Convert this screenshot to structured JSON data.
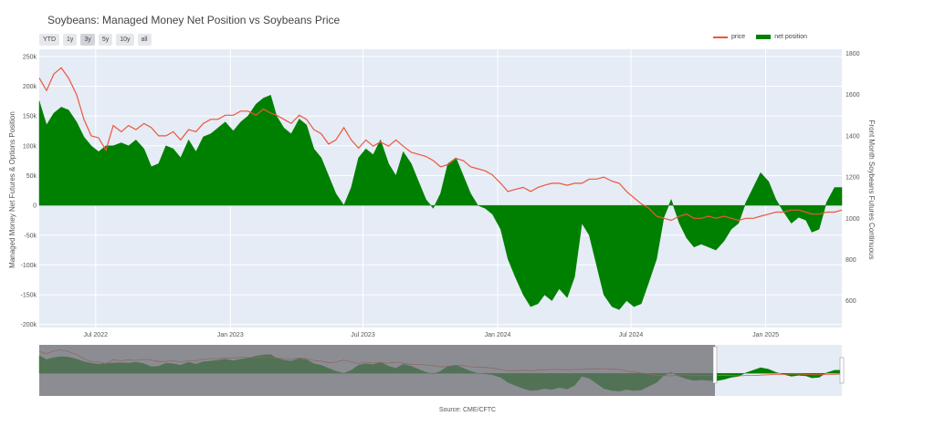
{
  "title": "Soybeans: Managed Money Net Position vs Soybeans Price",
  "range_buttons": [
    {
      "label": "YTD",
      "active": false
    },
    {
      "label": "1y",
      "active": false
    },
    {
      "label": "3y",
      "active": true
    },
    {
      "label": "5y",
      "active": false
    },
    {
      "label": "10y",
      "active": false
    },
    {
      "label": "all",
      "active": false
    }
  ],
  "legend": {
    "price_label": "price",
    "net_label": "net position",
    "price_color": "#ef553b",
    "net_color": "#008000"
  },
  "source": "Source: CME/CFTC",
  "chart_data": {
    "type": "area",
    "y_left_label": "Managed Money Net Futures & Options Position",
    "y_right_label": "Front Month Soybeans Futures Continuous",
    "y_left_ticks": [
      "250k",
      "200k",
      "150k",
      "100k",
      "50k",
      "0",
      "-50k",
      "-100k",
      "-150k",
      "-200k"
    ],
    "y_left_tick_values": [
      250000,
      200000,
      150000,
      100000,
      50000,
      0,
      -50000,
      -100000,
      -150000,
      -200000
    ],
    "y_right_ticks": [
      "1800",
      "1600",
      "1400",
      "1200",
      "1000",
      "800",
      "600"
    ],
    "y_right_tick_values": [
      1800,
      1600,
      1400,
      1200,
      1000,
      800,
      600
    ],
    "y_left_range": [
      -205000,
      262000
    ],
    "y_right_range": [
      470,
      1820
    ],
    "x_ticks": [
      "Jul 2022",
      "Jan 2023",
      "Jul 2023",
      "Jan 2024",
      "Jul 2024",
      "Jan 2025"
    ],
    "x_tick_dates": [
      "2022-07-01",
      "2023-01-01",
      "2023-07-01",
      "2024-01-01",
      "2024-07-01",
      "2025-01-01"
    ],
    "x_range": [
      "2022-04-15",
      "2025-04-15"
    ],
    "series": [
      {
        "name": "net position",
        "x": [
          "2022-04-15",
          "2022-04-25",
          "2022-05-05",
          "2022-05-15",
          "2022-05-25",
          "2022-06-05",
          "2022-06-15",
          "2022-06-25",
          "2022-07-05",
          "2022-07-15",
          "2022-07-25",
          "2022-08-05",
          "2022-08-15",
          "2022-08-25",
          "2022-09-05",
          "2022-09-15",
          "2022-09-25",
          "2022-10-05",
          "2022-10-15",
          "2022-10-25",
          "2022-11-05",
          "2022-11-15",
          "2022-11-25",
          "2022-12-05",
          "2022-12-15",
          "2022-12-25",
          "2023-01-05",
          "2023-01-15",
          "2023-01-25",
          "2023-02-05",
          "2023-02-15",
          "2023-02-25",
          "2023-03-05",
          "2023-03-15",
          "2023-03-25",
          "2023-04-05",
          "2023-04-15",
          "2023-04-25",
          "2023-05-05",
          "2023-05-15",
          "2023-05-25",
          "2023-06-05",
          "2023-06-15",
          "2023-06-25",
          "2023-07-05",
          "2023-07-15",
          "2023-07-25",
          "2023-08-05",
          "2023-08-15",
          "2023-08-25",
          "2023-09-05",
          "2023-09-15",
          "2023-09-25",
          "2023-10-05",
          "2023-10-15",
          "2023-10-25",
          "2023-11-05",
          "2023-11-15",
          "2023-11-25",
          "2023-12-05",
          "2023-12-15",
          "2023-12-25",
          "2024-01-05",
          "2024-01-15",
          "2024-01-25",
          "2024-02-05",
          "2024-02-15",
          "2024-02-25",
          "2024-03-05",
          "2024-03-15",
          "2024-03-25",
          "2024-04-05",
          "2024-04-15",
          "2024-04-25",
          "2024-05-05",
          "2024-05-15",
          "2024-05-25",
          "2024-06-05",
          "2024-06-15",
          "2024-06-25",
          "2024-07-05",
          "2024-07-15",
          "2024-07-25",
          "2024-08-05",
          "2024-08-15",
          "2024-08-25",
          "2024-09-05",
          "2024-09-15",
          "2024-09-25",
          "2024-10-05",
          "2024-10-15",
          "2024-10-25",
          "2024-11-05",
          "2024-11-15",
          "2024-11-25",
          "2024-12-05",
          "2024-12-15",
          "2024-12-25",
          "2025-01-05",
          "2025-01-15",
          "2025-01-25",
          "2025-02-05",
          "2025-02-15",
          "2025-02-25",
          "2025-03-05",
          "2025-03-15",
          "2025-03-25",
          "2025-04-05",
          "2025-04-15"
        ],
        "values": [
          175000,
          135000,
          155000,
          165000,
          160000,
          140000,
          115000,
          100000,
          90000,
          100000,
          100000,
          105000,
          100000,
          110000,
          95000,
          65000,
          70000,
          100000,
          95000,
          80000,
          110000,
          90000,
          115000,
          120000,
          130000,
          140000,
          125000,
          140000,
          150000,
          170000,
          180000,
          185000,
          150000,
          130000,
          120000,
          145000,
          135000,
          95000,
          80000,
          50000,
          20000,
          0,
          30000,
          80000,
          95000,
          85000,
          110000,
          70000,
          50000,
          90000,
          70000,
          40000,
          10000,
          -5000,
          20000,
          70000,
          80000,
          50000,
          20000,
          0,
          -5000,
          -15000,
          -40000,
          -90000,
          -120000,
          -150000,
          -170000,
          -165000,
          -150000,
          -160000,
          -140000,
          -155000,
          -120000,
          -30000,
          -50000,
          -100000,
          -150000,
          -170000,
          -175000,
          -160000,
          -170000,
          -165000,
          -130000,
          -90000,
          -20000,
          10000,
          -30000,
          -55000,
          -70000,
          -65000,
          -70000,
          -75000,
          -60000,
          -40000,
          -30000,
          5000,
          30000,
          55000,
          40000,
          10000,
          -10000,
          -30000,
          -20000,
          -25000,
          -45000,
          -40000,
          5000,
          30000,
          30000
        ]
      },
      {
        "name": "price",
        "x": [
          "2022-04-15",
          "2022-04-25",
          "2022-05-05",
          "2022-05-15",
          "2022-05-25",
          "2022-06-05",
          "2022-06-15",
          "2022-06-25",
          "2022-07-05",
          "2022-07-15",
          "2022-07-25",
          "2022-08-05",
          "2022-08-15",
          "2022-08-25",
          "2022-09-05",
          "2022-09-15",
          "2022-09-25",
          "2022-10-05",
          "2022-10-15",
          "2022-10-25",
          "2022-11-05",
          "2022-11-15",
          "2022-11-25",
          "2022-12-05",
          "2022-12-15",
          "2022-12-25",
          "2023-01-05",
          "2023-01-15",
          "2023-01-25",
          "2023-02-05",
          "2023-02-15",
          "2023-02-25",
          "2023-03-05",
          "2023-03-15",
          "2023-03-25",
          "2023-04-05",
          "2023-04-15",
          "2023-04-25",
          "2023-05-05",
          "2023-05-15",
          "2023-05-25",
          "2023-06-05",
          "2023-06-15",
          "2023-06-25",
          "2023-07-05",
          "2023-07-15",
          "2023-07-25",
          "2023-08-05",
          "2023-08-15",
          "2023-08-25",
          "2023-09-05",
          "2023-09-15",
          "2023-09-25",
          "2023-10-05",
          "2023-10-15",
          "2023-10-25",
          "2023-11-05",
          "2023-11-15",
          "2023-11-25",
          "2023-12-05",
          "2023-12-15",
          "2023-12-25",
          "2024-01-05",
          "2024-01-15",
          "2024-01-25",
          "2024-02-05",
          "2024-02-15",
          "2024-02-25",
          "2024-03-05",
          "2024-03-15",
          "2024-03-25",
          "2024-04-05",
          "2024-04-15",
          "2024-04-25",
          "2024-05-05",
          "2024-05-15",
          "2024-05-25",
          "2024-06-05",
          "2024-06-15",
          "2024-06-25",
          "2024-07-05",
          "2024-07-15",
          "2024-07-25",
          "2024-08-05",
          "2024-08-15",
          "2024-08-25",
          "2024-09-05",
          "2024-09-15",
          "2024-09-25",
          "2024-10-05",
          "2024-10-15",
          "2024-10-25",
          "2024-11-05",
          "2024-11-15",
          "2024-11-25",
          "2024-12-05",
          "2024-12-15",
          "2024-12-25",
          "2025-01-05",
          "2025-01-15",
          "2025-01-25",
          "2025-02-05",
          "2025-02-15",
          "2025-02-25",
          "2025-03-05",
          "2025-03-15",
          "2025-03-25",
          "2025-04-05",
          "2025-04-15"
        ],
        "values": [
          1680,
          1620,
          1700,
          1730,
          1680,
          1600,
          1480,
          1400,
          1390,
          1330,
          1450,
          1420,
          1450,
          1430,
          1460,
          1440,
          1400,
          1400,
          1420,
          1380,
          1430,
          1420,
          1460,
          1480,
          1480,
          1500,
          1500,
          1520,
          1520,
          1500,
          1530,
          1510,
          1500,
          1480,
          1460,
          1500,
          1480,
          1430,
          1410,
          1360,
          1380,
          1440,
          1380,
          1340,
          1380,
          1350,
          1370,
          1350,
          1380,
          1350,
          1320,
          1310,
          1300,
          1280,
          1250,
          1260,
          1290,
          1280,
          1250,
          1240,
          1230,
          1210,
          1170,
          1130,
          1140,
          1150,
          1130,
          1150,
          1160,
          1170,
          1170,
          1160,
          1170,
          1170,
          1190,
          1190,
          1200,
          1180,
          1170,
          1130,
          1100,
          1070,
          1050,
          1010,
          1000,
          990,
          1010,
          1020,
          1000,
          1000,
          1010,
          1000,
          1010,
          1000,
          990,
          1000,
          1000,
          1010,
          1020,
          1030,
          1030,
          1040,
          1040,
          1030,
          1020,
          1020,
          1030,
          1030,
          1040
        ]
      }
    ],
    "navigator": {
      "window_start": "2022-04-15",
      "window_end": "2025-04-15"
    }
  }
}
